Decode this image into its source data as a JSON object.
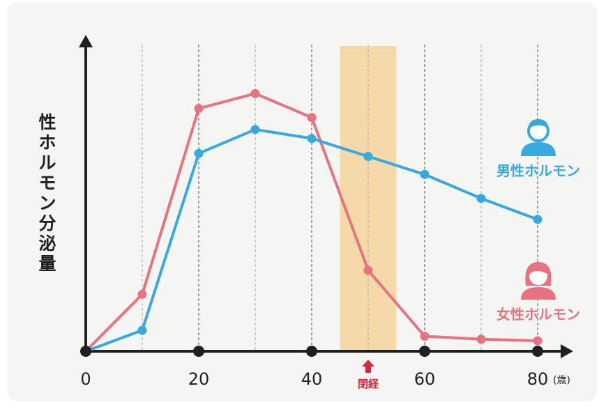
{
  "chart_data": {
    "type": "line",
    "ylabel": "性ホルモン分泌量",
    "x_unit": "(歳)",
    "xlim": [
      0,
      85
    ],
    "ylim": [
      0,
      100
    ],
    "x_ticks": [
      0,
      20,
      40,
      60,
      80
    ],
    "x_gridlines": [
      10,
      20,
      30,
      40,
      50,
      60,
      70,
      80
    ],
    "highlight_band": {
      "x0": 45,
      "x1": 55,
      "color": "#f6d9a8"
    },
    "menopause": {
      "x": 50,
      "label": "閉経",
      "color": "#d6283a"
    },
    "series": [
      {
        "name": "女性ホルモン",
        "color": "#e8727f",
        "x": [
          0,
          10,
          20,
          30,
          40,
          50,
          60,
          70,
          80
        ],
        "y": [
          0,
          19,
          81,
          86,
          78,
          27,
          5,
          4,
          3.5
        ]
      },
      {
        "name": "男性ホルモン",
        "color": "#36a9e1",
        "x": [
          0,
          10,
          20,
          30,
          40,
          50,
          60,
          70,
          80
        ],
        "y": [
          0,
          7,
          66,
          74,
          71,
          65,
          59,
          51,
          44
        ]
      }
    ]
  },
  "colors": {
    "axis": "#1f1f1f",
    "male": "#36a9e1",
    "female": "#e8727f"
  },
  "icons": {
    "male": "man-avatar-icon",
    "female": "woman-avatar-icon",
    "menopause_marker": "up-arrow-icon"
  }
}
